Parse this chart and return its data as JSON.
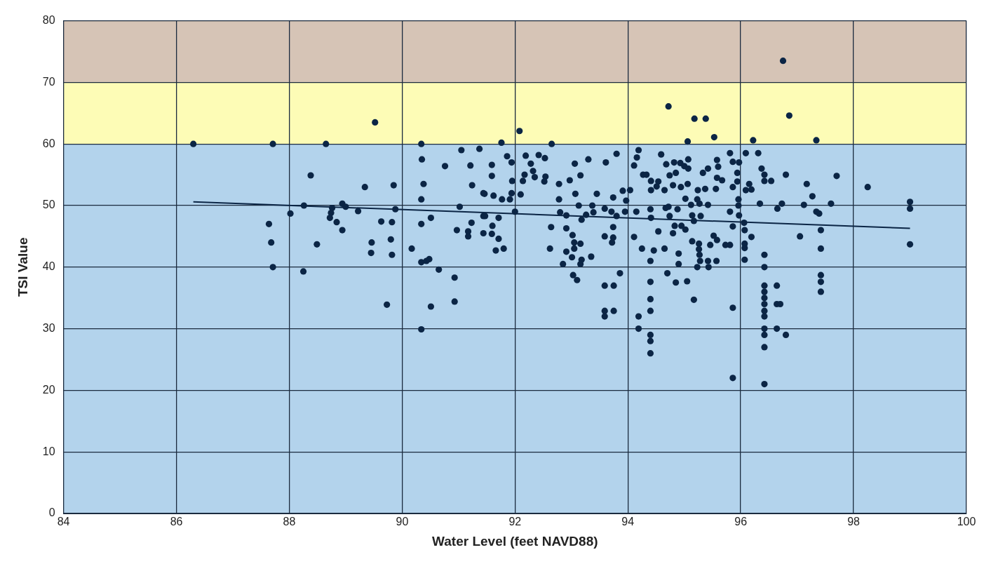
{
  "chart_data": {
    "type": "scatter",
    "xlabel": "Water Level (feet NAVD88)",
    "ylabel": "TSI Value",
    "xlim": [
      84,
      100
    ],
    "ylim": [
      0,
      80
    ],
    "xticks": [
      84,
      86,
      88,
      90,
      92,
      94,
      96,
      98,
      100
    ],
    "yticks": [
      0,
      10,
      20,
      30,
      40,
      50,
      60,
      70,
      80
    ],
    "grid": true,
    "legend": false,
    "marker": "circle",
    "bands": [
      {
        "axis": "y",
        "from": 0,
        "to": 60,
        "color": "#b3d3ec"
      },
      {
        "axis": "y",
        "from": 60,
        "to": 70,
        "color": "#fdfcb6"
      },
      {
        "axis": "y",
        "from": 70,
        "to": 80,
        "color": "#d6c4b6"
      }
    ],
    "series": [
      {
        "color": "#0b2545",
        "x": [
          86.3,
          87.71,
          88.65,
          89.52,
          90.34,
          91.05,
          91.37,
          90.35,
          90.76,
          91.21,
          91.24,
          91.44,
          90.38,
          90.34,
          88.38,
          89.34,
          89.85,
          88.26,
          88.02,
          88.76,
          88.74,
          88.72,
          88.84,
          88.94,
          88.94,
          89,
          89.22,
          89.88,
          89.63,
          89.82,
          90.51,
          90.34,
          91.02,
          91.44,
          91.23,
          90.97,
          91.17,
          91.17,
          91.44,
          87.64,
          87.68,
          87.71,
          88.49,
          88.25,
          89.46,
          89.45,
          89.8,
          89.82,
          90.17,
          90.34,
          90.43,
          90.48,
          90.65,
          90.93,
          90.93,
          90.51,
          89.73,
          90.34,
          94.72,
          95.18,
          95.38,
          95.53,
          95.06,
          96.22,
          92.08,
          91.76,
          92.65,
          91.86,
          91.94,
          91.59,
          91.59,
          92.19,
          92.42,
          92.53,
          92.28,
          92.32,
          92.35,
          92.17,
          92.14,
          92.54,
          92.52,
          91.95,
          92.78,
          93.06,
          93.3,
          93.61,
          93.8,
          92.97,
          93.16,
          91.46,
          91.62,
          91.77,
          91.91,
          91.94,
          92.1,
          92.78,
          93.07,
          93.45,
          93.74,
          93.97,
          94.04,
          93.91,
          93.13,
          93.37,
          93.59,
          92,
          91.47,
          91.71,
          92.8,
          92.91,
          93.18,
          93.26,
          93.39,
          93.71,
          93.8,
          93.95,
          94.15,
          94.4,
          94.41,
          91.6,
          91.71,
          91.59,
          91.66,
          91.8,
          92.64,
          92.62,
          92.91,
          93.02,
          93.05,
          93.16,
          93.05,
          92.91,
          93.01,
          93.18,
          93.16,
          92.85,
          93.35,
          93.74,
          93.59,
          93.74,
          93.72,
          93.1,
          93.03,
          93.86,
          93.59,
          93.75,
          93.59,
          93.59,
          93.75,
          94.19,
          94.16,
          94.11,
          94.27,
          94.33,
          94.41,
          94.54,
          94.51,
          94.41,
          94.65,
          94.59,
          94.68,
          94.82,
          94.93,
          95,
          95.07,
          95.07,
          94.74,
          94.85,
          94.8,
          94.94,
          95.06,
          95.33,
          95.42,
          95.58,
          95.6,
          95.58,
          95.67,
          95.81,
          95.86,
          95.97,
          96.09,
          96.31,
          96.37,
          95.94,
          95.94,
          95.86,
          96.09,
          96.15,
          96.19,
          95.56,
          95.24,
          95.37,
          95.02,
          95.12,
          95.23,
          95.27,
          95.42,
          95.96,
          95.96,
          95.97,
          95.81,
          94.67,
          94.72,
          94.88,
          94.74,
          95.14,
          95.29,
          95.17,
          94.11,
          94.54,
          94.83,
          94.95,
          95.02,
          94.8,
          95.14,
          95.26,
          95.26,
          95.27,
          95.46,
          95.52,
          95.58,
          95.73,
          95.81,
          95.86,
          96.06,
          96.07,
          96.19,
          96.07,
          96.07,
          96.07,
          94.25,
          94.46,
          94.65,
          94.4,
          94.9,
          94.9,
          95.23,
          95.28,
          95.42,
          95.43,
          95.57,
          94.7,
          94.85,
          95.05,
          95.17,
          94.4,
          94.4,
          94.4,
          94.19,
          94.19,
          94.4,
          94.4,
          94.4,
          95.86,
          95.86,
          96.86,
          97.34,
          96.42,
          96.42,
          96.54,
          96.8,
          97.17,
          97.27,
          97.7,
          98.25,
          96.34,
          96.73,
          96.65,
          97.12,
          97.34,
          97.39,
          97.6,
          97.42,
          97.05,
          97.42,
          96.42,
          96.42,
          96.42,
          96.42,
          96.42,
          96.42,
          96.42,
          96.42,
          96.42,
          96.42,
          96.42,
          96.42,
          96.64,
          96.64,
          96.7,
          96.64,
          96.8,
          97.42,
          97.42,
          97.42,
          99,
          99,
          99,
          96.75
        ],
        "values": [
          60,
          60,
          60,
          63.5,
          60,
          59,
          59.2,
          57.5,
          56.4,
          56.5,
          53.3,
          52,
          53.5,
          51,
          54.9,
          53,
          53.3,
          50,
          48.7,
          49.6,
          48.8,
          48,
          47.3,
          46,
          50.3,
          49.8,
          49.1,
          49.4,
          47.4,
          47.3,
          48,
          47,
          49.8,
          48.3,
          47.2,
          46,
          45.8,
          45,
          45.5,
          47,
          44,
          40,
          43.7,
          39.3,
          44,
          42.3,
          44.5,
          42,
          43,
          40.8,
          41,
          41.3,
          39.6,
          38.3,
          34.4,
          33.6,
          33.9,
          29.9,
          66.1,
          64.1,
          64.1,
          61.1,
          60.4,
          60.6,
          62.1,
          60.2,
          60,
          58,
          57,
          56.6,
          54.8,
          58.1,
          58.2,
          57.7,
          56.8,
          55.6,
          54.6,
          55,
          54,
          54.7,
          53.9,
          54,
          53.5,
          56.8,
          57.5,
          57,
          58.4,
          54.1,
          54.9,
          51.9,
          51.6,
          51,
          51,
          52,
          51.8,
          51,
          51.9,
          51.9,
          51.3,
          50.8,
          52.5,
          52.4,
          50,
          50,
          49.5,
          49,
          48.3,
          48,
          48.9,
          48.4,
          47.7,
          48.5,
          48.9,
          49,
          48.3,
          49,
          49,
          49.4,
          48,
          46.7,
          44.6,
          45.4,
          42.7,
          43,
          46.5,
          43,
          46.3,
          45.2,
          44,
          43.8,
          43,
          42.5,
          41.6,
          41.2,
          40.5,
          40.5,
          41.7,
          46.5,
          45,
          44.8,
          44,
          37.9,
          38.7,
          39,
          37,
          37,
          32.9,
          32,
          32.9,
          59,
          57.8,
          56.5,
          55,
          55,
          54,
          53.9,
          53.1,
          52.5,
          52.5,
          58.3,
          56.7,
          57,
          56.9,
          56.4,
          56,
          57.5,
          54.9,
          55.3,
          53.3,
          53,
          53.5,
          55.3,
          56,
          57.4,
          56.3,
          54.5,
          54.1,
          58.5,
          57.1,
          57,
          58.5,
          58.5,
          56,
          55.3,
          53.9,
          53,
          52.5,
          53.5,
          52.6,
          52.7,
          52.5,
          52.7,
          51.1,
          50.1,
          51,
          50.3,
          50.1,
          51,
          50,
          48.4,
          49,
          49.6,
          49.8,
          49.4,
          48.3,
          48.4,
          48.3,
          47.5,
          44.9,
          45.8,
          46.7,
          46.7,
          46.1,
          45.5,
          44.2,
          43.8,
          42.9,
          42,
          43.6,
          45.1,
          44.4,
          43.6,
          43.6,
          46.6,
          47.2,
          46,
          44.9,
          43.8,
          43.1,
          41.2,
          43,
          42.7,
          43,
          41,
          42.2,
          40.5,
          40,
          41,
          41,
          40,
          41,
          39,
          37.5,
          37.7,
          34.7,
          37.6,
          34.8,
          32.9,
          32,
          30,
          29,
          28,
          26,
          33.4,
          22,
          64.6,
          60.6,
          55,
          54,
          54,
          55,
          53.5,
          51.5,
          54.8,
          53,
          50.3,
          50.3,
          49.5,
          50.1,
          49,
          48.7,
          50.3,
          46,
          45,
          43,
          42,
          40,
          37,
          36,
          35,
          34,
          32.9,
          32,
          30,
          29,
          27,
          21,
          37,
          34,
          34,
          30,
          29,
          38.7,
          37.6,
          36,
          50.6,
          49.5,
          43.7,
          73.5
        ]
      },
      {
        "type": "line",
        "color": "#0b2545",
        "x": [
          86.3,
          99
        ],
        "values": [
          50.6,
          46.3
        ],
        "marker": "none",
        "line_style": "solid"
      }
    ]
  }
}
